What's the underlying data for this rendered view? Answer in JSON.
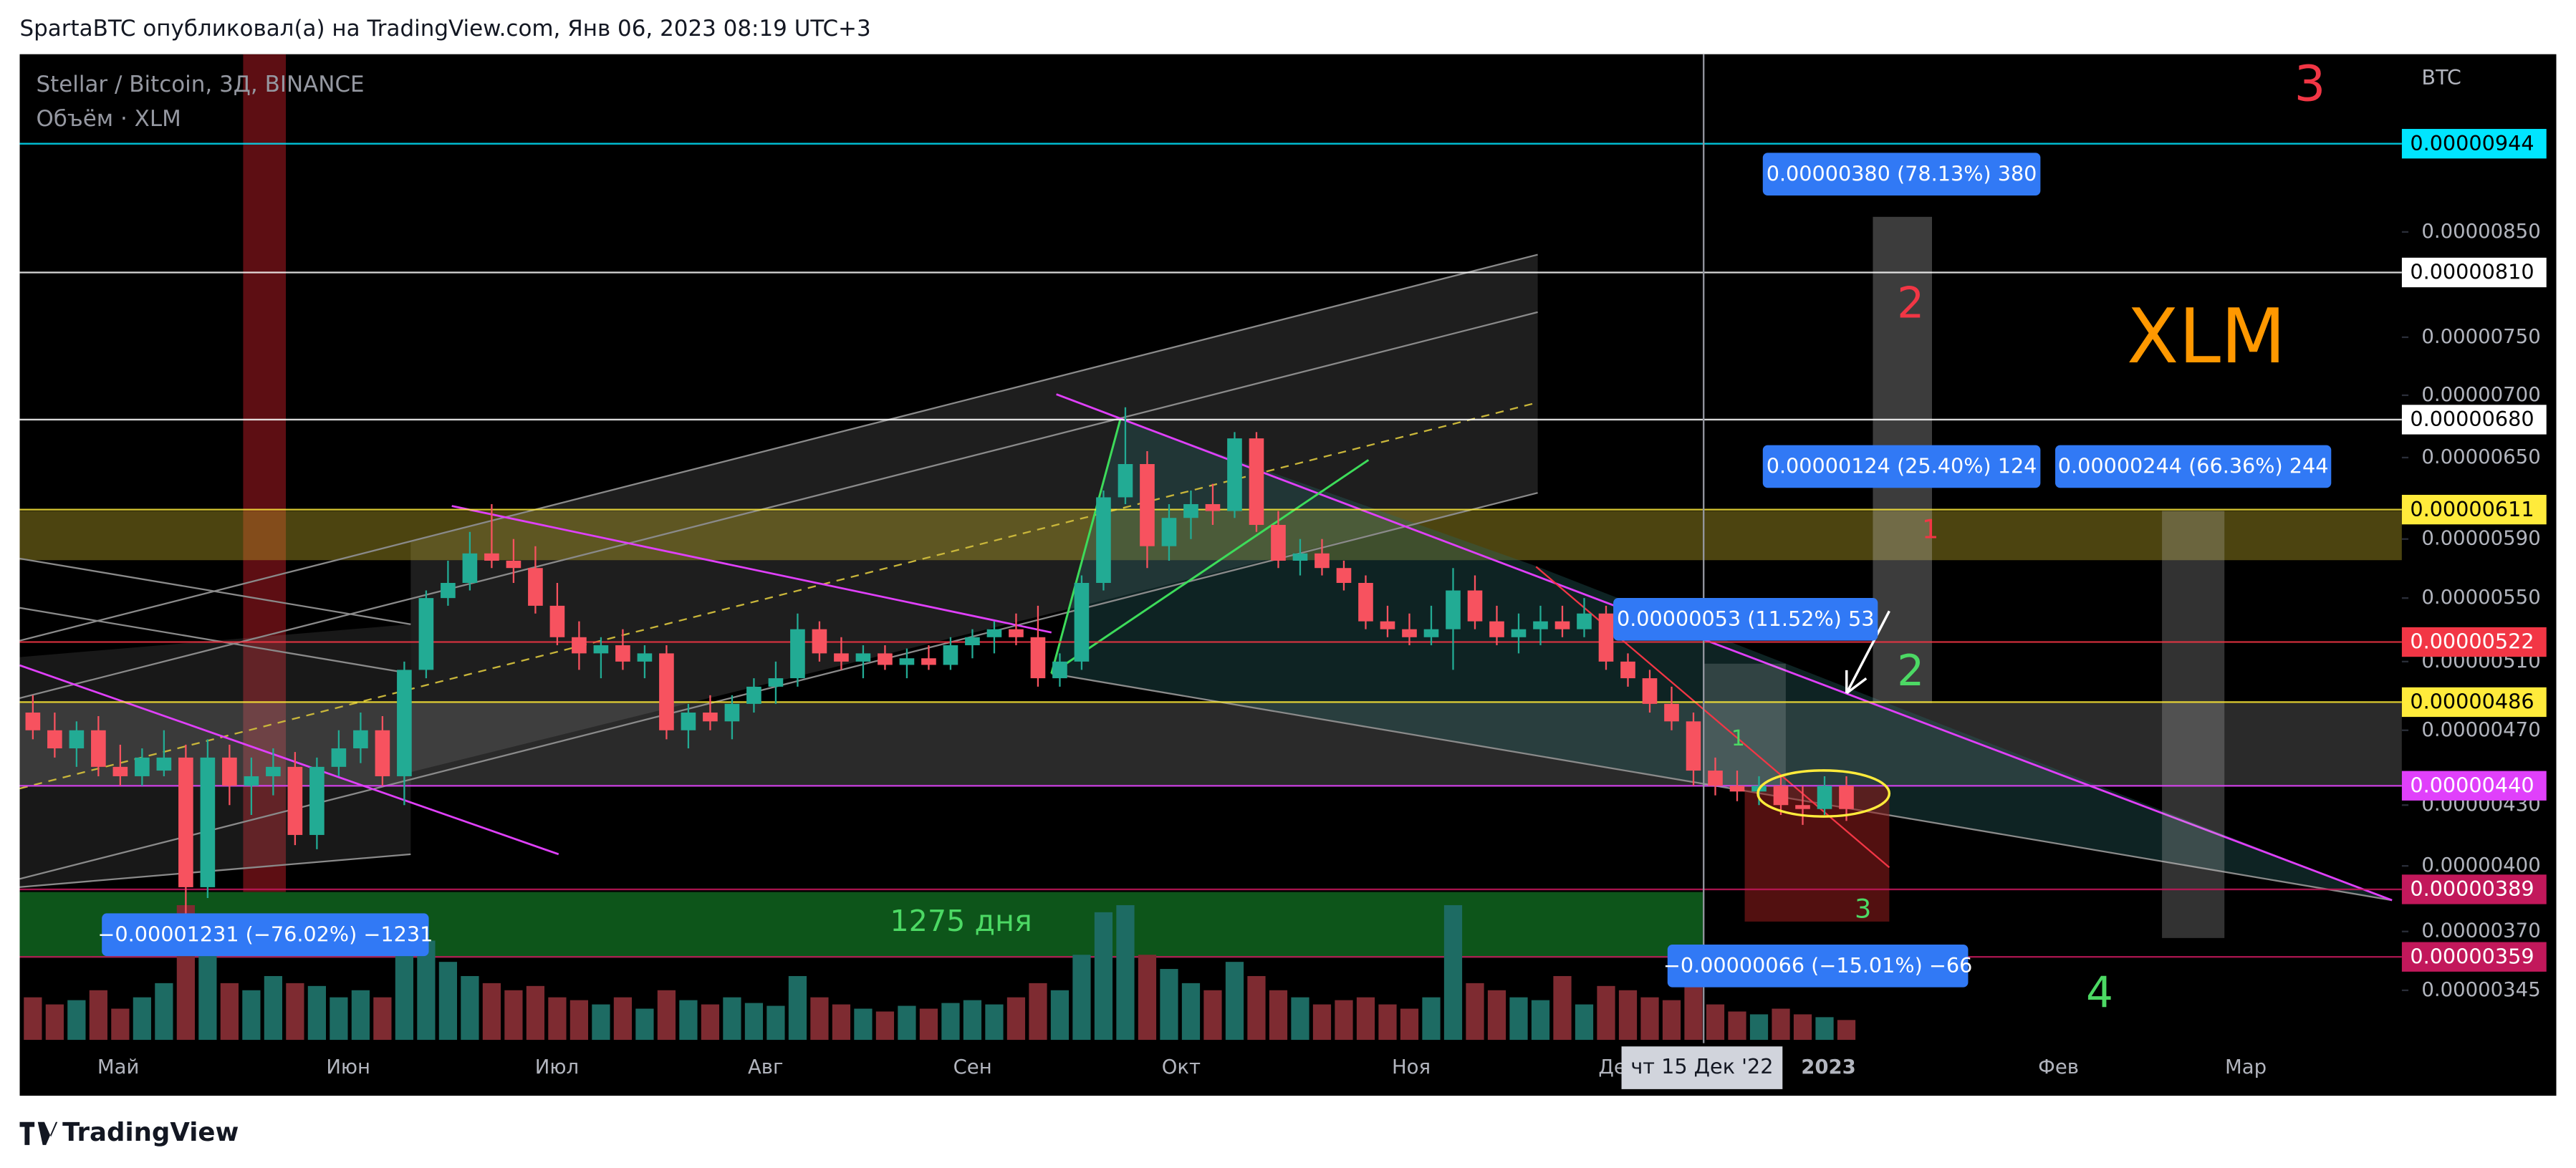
{
  "header": {
    "text": "SpartaBTC опубликовал(а) на TradingView.com, Янв 06, 2023 08:19 UTC+3"
  },
  "chart_data": {
    "type": "candlestick",
    "title": "Stellar / Bitcoin, 3Д, BINANCE",
    "subtitle": "Объём · XLM",
    "y_axis_label": "BTC",
    "log_scale": true,
    "grid": false,
    "ylim": [
      3.24e-06,
      1.05e-05
    ],
    "yticks": [
      {
        "value": 8.5e-06,
        "label": "0.00000850"
      },
      {
        "value": 7.5e-06,
        "label": "0.00000750"
      },
      {
        "value": 7e-06,
        "label": "0.00000700"
      },
      {
        "value": 6.5e-06,
        "label": "0.00000650"
      },
      {
        "value": 5.9e-06,
        "label": "0.00000590"
      },
      {
        "value": 5.5e-06,
        "label": "0.00000550"
      },
      {
        "value": 5.1e-06,
        "label": "0.00000510"
      },
      {
        "value": 4.7e-06,
        "label": "0.00000470"
      },
      {
        "value": 4.3e-06,
        "label": "0.00000430"
      },
      {
        "value": 4e-06,
        "label": "0.00000400"
      },
      {
        "value": 3.7e-06,
        "label": "0.00000370"
      },
      {
        "value": 3.45e-06,
        "label": "0.00000345"
      }
    ],
    "x_labels": [
      "Май",
      "Июн",
      "Июл",
      "Авг",
      "Сен",
      "Окт",
      "Ноя",
      "Дек",
      "2023",
      "Фев",
      "Мар"
    ],
    "crosshair_label": "чт 15 Дек '22",
    "up_color": "#22ab94",
    "down_color": "#f7525f",
    "volume_up_color": "#1d6b63",
    "volume_down_color": "#7e2b31",
    "open": [
      4.8e-06,
      4.7e-06,
      4.6e-06,
      4.7e-06,
      4.5e-06,
      4.45e-06,
      4.48e-06,
      4.55e-06,
      3.9e-06,
      4.55e-06,
      4.4e-06,
      4.45e-06,
      4.5e-06,
      4.15e-06,
      4.5e-06,
      4.6e-06,
      4.7e-06,
      4.45e-06,
      5.05e-06,
      5.5e-06,
      5.6e-06,
      5.8e-06,
      5.75e-06,
      5.7e-06,
      5.45e-06,
      5.25e-06,
      5.15e-06,
      5.2e-06,
      5.1e-06,
      5.15e-06,
      4.7e-06,
      4.8e-06,
      4.75e-06,
      4.85e-06,
      4.95e-06,
      5e-06,
      5.3e-06,
      5.15e-06,
      5.1e-06,
      5.15e-06,
      5.08e-06,
      5.12e-06,
      5.08e-06,
      5.2e-06,
      5.25e-06,
      5.3e-06,
      5.25e-06,
      5e-06,
      5.1e-06,
      5.6e-06,
      6.2e-06,
      6.45e-06,
      5.85e-06,
      6.05e-06,
      6.15e-06,
      6.1e-06,
      6.65e-06,
      6e-06,
      5.75e-06,
      5.8e-06,
      5.7e-06,
      5.6e-06,
      5.35e-06,
      5.3e-06,
      5.25e-06,
      5.3e-06,
      5.55e-06,
      5.35e-06,
      5.25e-06,
      5.3e-06,
      5.35e-06,
      5.3e-06,
      5.4e-06,
      5.1e-06,
      5e-06,
      4.85e-06,
      4.75e-06,
      4.48e-06,
      4.4e-06,
      4.37e-06,
      4.4e-06,
      4.3e-06,
      4.28e-06,
      4.4e-06
    ],
    "high": [
      4.9e-06,
      4.8e-06,
      4.75e-06,
      4.78e-06,
      4.62e-06,
      4.6e-06,
      4.7e-06,
      4.62e-06,
      4.65e-06,
      4.62e-06,
      4.55e-06,
      4.6e-06,
      4.58e-06,
      4.55e-06,
      4.7e-06,
      4.8e-06,
      4.78e-06,
      5.1e-06,
      5.55e-06,
      5.75e-06,
      5.95e-06,
      6.15e-06,
      5.9e-06,
      5.85e-06,
      5.6e-06,
      5.35e-06,
      5.25e-06,
      5.3e-06,
      5.2e-06,
      5.2e-06,
      4.85e-06,
      4.9e-06,
      4.9e-06,
      5e-06,
      5.1e-06,
      5.4e-06,
      5.35e-06,
      5.25e-06,
      5.2e-06,
      5.2e-06,
      5.18e-06,
      5.2e-06,
      5.25e-06,
      5.3e-06,
      5.35e-06,
      5.4e-06,
      5.45e-06,
      5.15e-06,
      5.65e-06,
      6.25e-06,
      6.9e-06,
      6.55e-06,
      6.15e-06,
      6.25e-06,
      6.3e-06,
      6.7e-06,
      6.7e-06,
      6.1e-06,
      5.9e-06,
      5.9e-06,
      5.75e-06,
      5.65e-06,
      5.45e-06,
      5.4e-06,
      5.45e-06,
      5.7e-06,
      5.65e-06,
      5.45e-06,
      5.4e-06,
      5.45e-06,
      5.45e-06,
      5.5e-06,
      5.45e-06,
      5.15e-06,
      5.05e-06,
      4.95e-06,
      4.8e-06,
      4.55e-06,
      4.48e-06,
      4.45e-06,
      4.45e-06,
      4.4e-06,
      4.45e-06,
      4.45e-06
    ],
    "low": [
      4.65e-06,
      4.55e-06,
      4.5e-06,
      4.45e-06,
      4.4e-06,
      4.4e-06,
      4.45e-06,
      3.68e-06,
      3.85e-06,
      4.3e-06,
      4.25e-06,
      4.35e-06,
      4.1e-06,
      4.08e-06,
      4.45e-06,
      4.52e-06,
      4.4e-06,
      4.3e-06,
      5e-06,
      5.45e-06,
      5.55e-06,
      5.7e-06,
      5.6e-06,
      5.4e-06,
      5.2e-06,
      5.05e-06,
      5e-06,
      5.05e-06,
      5e-06,
      4.65e-06,
      4.6e-06,
      4.7e-06,
      4.65e-06,
      4.8e-06,
      4.85e-06,
      4.95e-06,
      5.1e-06,
      5.05e-06,
      5e-06,
      5.05e-06,
      5e-06,
      5.05e-06,
      5.05e-06,
      5.12e-06,
      5.15e-06,
      5.2e-06,
      4.95e-06,
      4.95e-06,
      5.05e-06,
      5.55e-06,
      6.15e-06,
      5.7e-06,
      5.75e-06,
      5.9e-06,
      6e-06,
      6.05e-06,
      5.95e-06,
      5.7e-06,
      5.65e-06,
      5.65e-06,
      5.55e-06,
      5.3e-06,
      5.25e-06,
      5.2e-06,
      5.2e-06,
      5.05e-06,
      5.3e-06,
      5.2e-06,
      5.15e-06,
      5.2e-06,
      5.25e-06,
      5.25e-06,
      5.05e-06,
      4.95e-06,
      4.8e-06,
      4.7e-06,
      4.4e-06,
      4.35e-06,
      4.32e-06,
      4.3e-06,
      4.25e-06,
      4.2e-06,
      4.25e-06,
      4.22e-06
    ],
    "close": [
      4.7e-06,
      4.6e-06,
      4.7e-06,
      4.5e-06,
      4.45e-06,
      4.55e-06,
      4.55e-06,
      3.9e-06,
      4.55e-06,
      4.4e-06,
      4.45e-06,
      4.5e-06,
      4.15e-06,
      4.5e-06,
      4.6e-06,
      4.7e-06,
      4.45e-06,
      5.05e-06,
      5.5e-06,
      5.6e-06,
      5.8e-06,
      5.75e-06,
      5.7e-06,
      5.45e-06,
      5.25e-06,
      5.15e-06,
      5.2e-06,
      5.1e-06,
      5.15e-06,
      4.7e-06,
      4.8e-06,
      4.75e-06,
      4.85e-06,
      4.95e-06,
      5e-06,
      5.3e-06,
      5.15e-06,
      5.1e-06,
      5.15e-06,
      5.08e-06,
      5.12e-06,
      5.08e-06,
      5.2e-06,
      5.25e-06,
      5.3e-06,
      5.25e-06,
      5e-06,
      5.1e-06,
      5.6e-06,
      6.2e-06,
      6.45e-06,
      5.85e-06,
      6.05e-06,
      6.15e-06,
      6.1e-06,
      6.65e-06,
      6e-06,
      5.75e-06,
      5.8e-06,
      5.7e-06,
      5.6e-06,
      5.35e-06,
      5.3e-06,
      5.25e-06,
      5.3e-06,
      5.55e-06,
      5.35e-06,
      5.25e-06,
      5.3e-06,
      5.35e-06,
      5.3e-06,
      5.4e-06,
      5.1e-06,
      5e-06,
      4.85e-06,
      4.75e-06,
      4.48e-06,
      4.4e-06,
      4.37e-06,
      4.4e-06,
      4.3e-06,
      4.28e-06,
      4.4e-06,
      4.28e-06
    ],
    "volume": [
      30,
      25,
      28,
      35,
      22,
      30,
      40,
      95,
      85,
      40,
      35,
      45,
      40,
      38,
      30,
      35,
      30,
      80,
      70,
      55,
      45,
      40,
      35,
      38,
      30,
      28,
      25,
      30,
      22,
      35,
      28,
      25,
      30,
      26,
      24,
      45,
      30,
      25,
      22,
      20,
      24,
      22,
      26,
      28,
      25,
      30,
      40,
      35,
      60,
      90,
      95,
      60,
      50,
      40,
      35,
      55,
      45,
      35,
      30,
      25,
      28,
      30,
      25,
      22,
      30,
      95,
      40,
      35,
      30,
      28,
      45,
      25,
      38,
      35,
      30,
      28,
      40,
      25,
      20,
      18,
      22,
      18,
      16,
      14
    ],
    "price_lines": [
      {
        "value": 9.44e-06,
        "label": "0.00000944",
        "color": "#00e5ff"
      },
      {
        "value": 8.1e-06,
        "label": "0.00000810",
        "color": "#ffffff"
      },
      {
        "value": 6.8e-06,
        "label": "0.00000680",
        "color": "#ffffff"
      },
      {
        "value": 6.11e-06,
        "label": "0.00000611",
        "color": "#ffeb3b"
      },
      {
        "value": 5.22e-06,
        "label": "0.00000522",
        "color": "#f23645"
      },
      {
        "value": 4.86e-06,
        "label": "0.00000486",
        "color": "#ffeb3b"
      },
      {
        "value": 4.4e-06,
        "label": "0.00000440",
        "color": "#e040fb"
      },
      {
        "value": 3.89e-06,
        "label": "0.00000389",
        "color": "#c2185b"
      },
      {
        "value": 3.59e-06,
        "label": "0.00000359",
        "color": "#c2185b"
      }
    ],
    "measure_color": "#3179f5",
    "measurements": [
      {
        "label": "0.00000380 (78.13%) 380"
      },
      {
        "label": "0.00000124 (25.40%) 124"
      },
      {
        "label": "0.00000244 (66.36%) 244"
      },
      {
        "label": "0.00000053 (11.52%) 53"
      },
      {
        "label": "−0.00001231 (−76.02%) −1231"
      },
      {
        "label": "−0.00000066 (−15.01%) −66"
      }
    ],
    "annotations": [
      {
        "text": "3",
        "color": "#f23645"
      },
      {
        "text": "2",
        "color": "#f23645"
      },
      {
        "text": "XLM",
        "color": "#ff9800"
      },
      {
        "text": "1",
        "color": "#f23645"
      },
      {
        "text": "2",
        "color": "#4cd964"
      },
      {
        "text": "1",
        "color": "#4cd964"
      },
      {
        "text": "3",
        "color": "#4cd964"
      },
      {
        "text": "4",
        "color": "#4cd964"
      },
      {
        "text": "1275 дня",
        "color": "#4cd964"
      }
    ]
  },
  "footer": {
    "brand": "TradingView"
  }
}
